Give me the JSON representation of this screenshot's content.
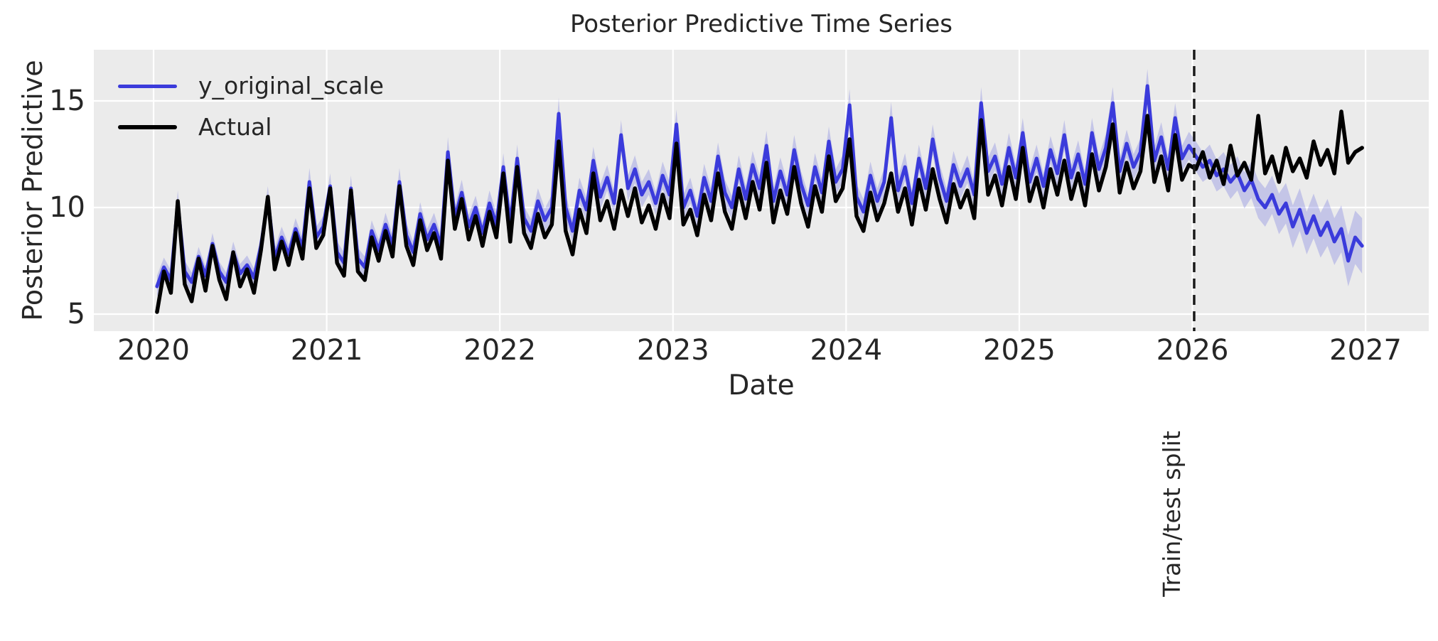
{
  "title": "Posterior Predictive Time Series",
  "axes": {
    "xlabel": "Date",
    "ylabel": "Posterior Predictive",
    "xtick_labels": [
      "2020",
      "2021",
      "2022",
      "2023",
      "2024",
      "2025",
      "2026",
      "2027"
    ],
    "ytick_labels": [
      "5",
      "10",
      "15"
    ]
  },
  "legend": {
    "items": [
      {
        "label": "y_original_scale",
        "color": "#3B3BDB"
      },
      {
        "label": "Actual",
        "color": "#000000"
      }
    ]
  },
  "annotation": {
    "label": "Train/test split"
  },
  "colors": {
    "page_bg": "#ffffff",
    "plot_bg": "#EBEBEB",
    "grid": "#ffffff",
    "text": "#262626",
    "predicted": "#3B3BDB",
    "actual": "#000000",
    "band": "#5052DC",
    "split_line": "#1a1a1a"
  },
  "chart_data": {
    "type": "line",
    "title": "Posterior Predictive Time Series",
    "xlabel": "Date",
    "ylabel": "Posterior Predictive",
    "xlim": [
      2019.655,
      2027.365
    ],
    "ylim": [
      4.2,
      17.4
    ],
    "xticks": [
      2020,
      2021,
      2022,
      2023,
      2024,
      2025,
      2026,
      2027
    ],
    "yticks": [
      5,
      10,
      15
    ],
    "grid": true,
    "legend_position": "upper left",
    "x": {
      "start": 2020.02,
      "step": 0.04,
      "count": 175
    },
    "series": [
      {
        "name": "y_original_scale",
        "color": "#3B3BDB",
        "style": "solid",
        "line_width": 5,
        "band_color": "#5052DC",
        "band_opacity": 0.25,
        "values": [
          6.3,
          7.2,
          6.6,
          10.2,
          7.0,
          6.5,
          7.7,
          6.8,
          8.3,
          7.0,
          6.5,
          7.9,
          6.9,
          7.3,
          6.7,
          8.2,
          10.4,
          7.6,
          8.6,
          7.8,
          9.0,
          8.1,
          11.2,
          8.6,
          9.1,
          11.0,
          7.9,
          7.4,
          10.9,
          7.6,
          7.2,
          8.9,
          8.0,
          9.2,
          8.2,
          11.2,
          8.7,
          7.9,
          9.7,
          8.5,
          9.2,
          8.2,
          12.6,
          9.5,
          10.7,
          9.1,
          10.0,
          8.8,
          10.2,
          9.2,
          11.9,
          9.2,
          12.3,
          9.5,
          8.9,
          10.3,
          9.4,
          10.0,
          14.4,
          10.0,
          8.9,
          10.8,
          9.9,
          12.2,
          10.5,
          11.4,
          10.2,
          13.4,
          10.9,
          11.8,
          10.6,
          11.2,
          10.2,
          11.5,
          10.6,
          13.9,
          10.0,
          10.8,
          9.6,
          11.4,
          10.3,
          12.4,
          10.7,
          10.0,
          11.8,
          10.4,
          12.0,
          10.9,
          12.9,
          10.3,
          11.7,
          10.6,
          12.7,
          11.1,
          10.1,
          11.9,
          10.7,
          13.1,
          11.2,
          11.8,
          14.8,
          10.5,
          9.8,
          11.5,
          10.3,
          11.2,
          14.2,
          10.8,
          11.9,
          10.2,
          12.3,
          10.9,
          13.2,
          11.4,
          10.3,
          12.0,
          11.0,
          11.8,
          10.6,
          14.9,
          11.7,
          12.4,
          11.1,
          12.8,
          11.4,
          13.5,
          11.2,
          12.3,
          11.0,
          12.7,
          11.6,
          13.4,
          11.4,
          12.5,
          11.1,
          13.5,
          11.8,
          12.8,
          14.9,
          11.7,
          13.0,
          11.9,
          12.6,
          15.7,
          12.2,
          13.3,
          11.8,
          14.2,
          12.3,
          12.9,
          12.4,
          11.9,
          12.2,
          11.5,
          11.8,
          11.2,
          11.6,
          10.8,
          11.3,
          10.4,
          10.0,
          10.6,
          9.7,
          10.2,
          9.1,
          9.9,
          8.8,
          9.6,
          8.7,
          9.3,
          8.4,
          9.0,
          7.5,
          8.6,
          8.2
        ],
        "band_half_width": [
          0.5,
          0.45,
          0.45,
          0.6,
          0.5,
          0.45,
          0.45,
          0.45,
          0.5,
          0.45,
          0.45,
          0.5,
          0.45,
          0.45,
          0.45,
          0.5,
          0.6,
          0.5,
          0.5,
          0.45,
          0.5,
          0.5,
          0.65,
          0.5,
          0.5,
          0.6,
          0.5,
          0.5,
          0.6,
          0.5,
          0.5,
          0.5,
          0.5,
          0.55,
          0.5,
          0.65,
          0.55,
          0.5,
          0.55,
          0.5,
          0.55,
          0.5,
          0.7,
          0.55,
          0.6,
          0.55,
          0.55,
          0.5,
          0.6,
          0.55,
          0.65,
          0.55,
          0.65,
          0.55,
          0.55,
          0.6,
          0.55,
          0.6,
          0.75,
          0.6,
          0.55,
          0.6,
          0.55,
          0.65,
          0.6,
          0.6,
          0.55,
          0.7,
          0.6,
          0.65,
          0.6,
          0.6,
          0.55,
          0.65,
          0.6,
          0.7,
          0.6,
          0.6,
          0.55,
          0.65,
          0.6,
          0.65,
          0.6,
          0.55,
          0.65,
          0.6,
          0.65,
          0.6,
          0.7,
          0.6,
          0.65,
          0.6,
          0.7,
          0.6,
          0.55,
          0.65,
          0.6,
          0.7,
          0.6,
          0.65,
          0.75,
          0.6,
          0.6,
          0.65,
          0.6,
          0.65,
          0.75,
          0.6,
          0.65,
          0.6,
          0.65,
          0.6,
          0.7,
          0.65,
          0.6,
          0.65,
          0.6,
          0.65,
          0.6,
          0.75,
          0.65,
          0.65,
          0.6,
          0.7,
          0.6,
          0.7,
          0.6,
          0.65,
          0.6,
          0.65,
          0.6,
          0.7,
          0.6,
          0.65,
          0.6,
          0.7,
          0.6,
          0.65,
          0.75,
          0.6,
          0.65,
          0.6,
          0.65,
          0.8,
          0.65,
          0.7,
          0.6,
          0.7,
          0.6,
          0.65,
          0.7,
          0.7,
          0.75,
          0.75,
          0.8,
          0.8,
          0.8,
          0.85,
          0.85,
          0.9,
          0.9,
          0.9,
          0.95,
          0.95,
          1.0,
          1.0,
          1.0,
          1.05,
          1.05,
          1.1,
          1.1,
          1.1,
          1.2,
          1.25,
          1.3
        ]
      },
      {
        "name": "Actual",
        "color": "#000000",
        "style": "solid",
        "line_width": 5.5,
        "values": [
          5.1,
          7.0,
          6.0,
          10.3,
          6.4,
          5.6,
          7.6,
          6.1,
          8.2,
          6.6,
          5.7,
          7.9,
          6.3,
          7.1,
          6.0,
          8.0,
          10.5,
          7.1,
          8.4,
          7.3,
          8.8,
          7.6,
          10.9,
          8.1,
          8.7,
          10.9,
          7.4,
          6.8,
          10.8,
          7.0,
          6.6,
          8.6,
          7.5,
          8.9,
          7.7,
          11.0,
          8.2,
          7.3,
          9.4,
          8.0,
          8.8,
          7.6,
          12.2,
          9.0,
          10.4,
          8.5,
          9.6,
          8.2,
          9.8,
          8.6,
          11.6,
          8.4,
          11.9,
          8.8,
          8.1,
          9.7,
          8.6,
          9.2,
          13.1,
          8.9,
          7.8,
          9.9,
          8.8,
          11.6,
          9.4,
          10.3,
          9.0,
          10.8,
          9.6,
          10.9,
          9.3,
          10.1,
          9.0,
          10.6,
          9.5,
          13.0,
          9.2,
          9.9,
          8.7,
          10.6,
          9.4,
          11.6,
          9.8,
          9.0,
          10.9,
          9.5,
          11.2,
          9.9,
          12.1,
          9.3,
          10.8,
          9.7,
          11.9,
          10.2,
          9.1,
          11.0,
          9.8,
          12.4,
          10.3,
          10.9,
          13.2,
          9.6,
          8.9,
          10.7,
          9.4,
          10.2,
          11.6,
          9.8,
          10.9,
          9.2,
          11.3,
          9.9,
          11.8,
          10.4,
          9.3,
          11.1,
          10.0,
          10.8,
          9.5,
          14.1,
          10.6,
          11.5,
          10.1,
          11.9,
          10.4,
          12.8,
          10.3,
          11.4,
          10.0,
          11.8,
          10.6,
          12.2,
          10.4,
          11.6,
          10.1,
          12.5,
          10.8,
          11.9,
          13.9,
          10.7,
          12.1,
          10.9,
          11.7,
          14.3,
          11.2,
          12.4,
          10.8,
          13.4,
          11.3,
          12.0,
          11.8,
          12.6,
          11.4,
          12.2,
          11.1,
          12.9,
          11.5,
          12.1,
          11.3,
          14.3,
          11.6,
          12.4,
          11.2,
          12.8,
          11.7,
          12.3,
          11.4,
          13.1,
          12.0,
          12.7,
          11.6,
          14.5,
          12.1,
          12.6,
          12.8
        ]
      }
    ],
    "vline": {
      "x": 2026.01,
      "label": "Train/test split",
      "style": "dashed",
      "color": "#1a1a1a",
      "line_width": 3.5
    }
  }
}
